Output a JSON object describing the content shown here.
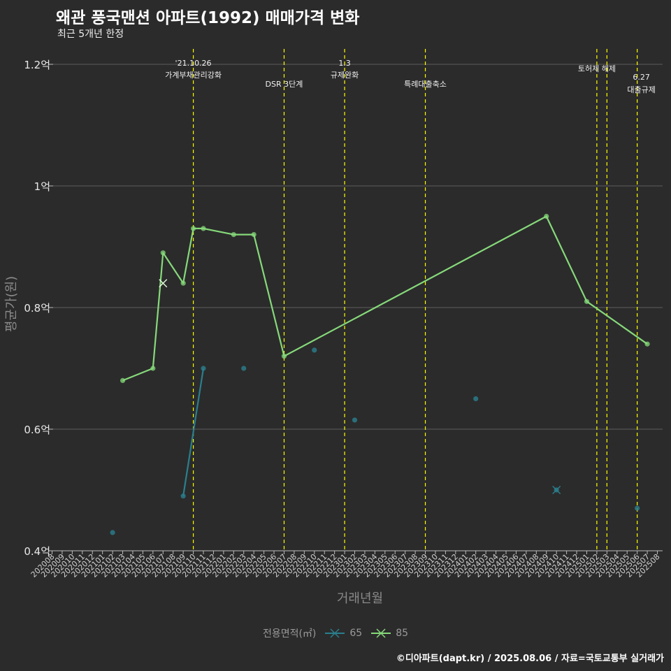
{
  "header": {
    "title": "왜관 풍국맨션 아파트(1992) 매매가격 변화",
    "subtitle": "최근 5개년 한정"
  },
  "caption": "©디아파트(dapt.kr) / 2025.08.06 / 자료=국토교통부 실거래가",
  "colors": {
    "background": "#2b2b2b",
    "grid": "#5e5e5e",
    "series_65": "#2a7f8e",
    "series_85": "#86d97a",
    "event_line": "#ffff00"
  },
  "chart_data": {
    "type": "line",
    "title": "왜관 풍국맨션 아파트(1992) 매매가격 변화",
    "xlabel": "거래년월",
    "ylabel": "평균가(원)",
    "ylim": [
      0.4,
      1.2
    ],
    "y_ticks": [
      0.4,
      0.6,
      0.8,
      1.0,
      1.2
    ],
    "y_tick_labels": [
      "0.4억",
      "0.6억",
      "0.8억",
      "1억",
      "1.2억"
    ],
    "categories": [
      "202008",
      "202009",
      "202010",
      "202011",
      "202012",
      "202101",
      "202102",
      "202103",
      "202104",
      "202105",
      "202106",
      "202107",
      "202108",
      "202109",
      "202110",
      "202111",
      "202112",
      "202201",
      "202202",
      "202203",
      "202204",
      "202205",
      "202206",
      "202207",
      "202208",
      "202209",
      "202210",
      "202211",
      "202212",
      "202301",
      "202302",
      "202303",
      "202304",
      "202305",
      "202306",
      "202307",
      "202308",
      "202309",
      "202310",
      "202311",
      "202312",
      "202401",
      "202402",
      "202403",
      "202404",
      "202405",
      "202406",
      "202407",
      "202408",
      "202409",
      "202410",
      "202411",
      "202412",
      "202501",
      "202502",
      "202503",
      "202504",
      "202505",
      "202506",
      "202507",
      "202508"
    ],
    "legend_title": "전용면적(㎡)",
    "legend_position": "bottom",
    "series": [
      {
        "name": "65",
        "line": [
          [
            "202109",
            0.49
          ],
          [
            "202111",
            0.7
          ]
        ],
        "points": [
          [
            "202102",
            0.43
          ],
          [
            "202109",
            0.49
          ],
          [
            "202111",
            0.7
          ],
          [
            "202203",
            0.7
          ],
          [
            "202210",
            0.73
          ],
          [
            "202302",
            0.615
          ],
          [
            "202402",
            0.65
          ],
          [
            "202410",
            0.5
          ],
          [
            "202506",
            0.47
          ]
        ],
        "cross": [
          [
            "202410",
            0.5
          ]
        ]
      },
      {
        "name": "85",
        "line": [
          [
            "202103",
            0.68
          ],
          [
            "202106",
            0.7
          ],
          [
            "202107",
            0.89
          ],
          [
            "202109",
            0.84
          ],
          [
            "202110",
            0.93
          ],
          [
            "202111",
            0.93
          ],
          [
            "202202",
            0.92
          ],
          [
            "202204",
            0.92
          ],
          [
            "202207",
            0.72
          ],
          [
            "202409",
            0.95
          ],
          [
            "202501",
            0.81
          ],
          [
            "202507",
            0.74
          ]
        ],
        "points": [
          [
            "202103",
            0.68
          ],
          [
            "202106",
            0.7
          ],
          [
            "202107",
            0.89
          ],
          [
            "202109",
            0.84
          ],
          [
            "202110",
            0.93
          ],
          [
            "202111",
            0.93
          ],
          [
            "202202",
            0.92
          ],
          [
            "202204",
            0.92
          ],
          [
            "202207",
            0.72
          ],
          [
            "202409",
            0.95
          ],
          [
            "202501",
            0.81
          ],
          [
            "202507",
            0.74
          ]
        ],
        "cross": [
          [
            "202107",
            0.84
          ]
        ]
      }
    ],
    "events": [
      {
        "month": "202110",
        "label": [
          "'21.10.26",
          "가계부채관리강화"
        ],
        "row": 1
      },
      {
        "month": "202207",
        "label": [
          "DSR 3단계"
        ],
        "row": 2
      },
      {
        "month": "202301",
        "label": [
          "1.3",
          "규제완화"
        ],
        "row": 1
      },
      {
        "month": "202309",
        "label": [
          "특례대출축소"
        ],
        "row": 2
      },
      {
        "month": "202502",
        "label": [
          "토허제 해제"
        ],
        "row": 3
      },
      {
        "month": "202503",
        "label": [],
        "row": 0
      },
      {
        "month": "202506",
        "label": [
          "6.27",
          "대출규제"
        ],
        "row": 4
      }
    ]
  }
}
